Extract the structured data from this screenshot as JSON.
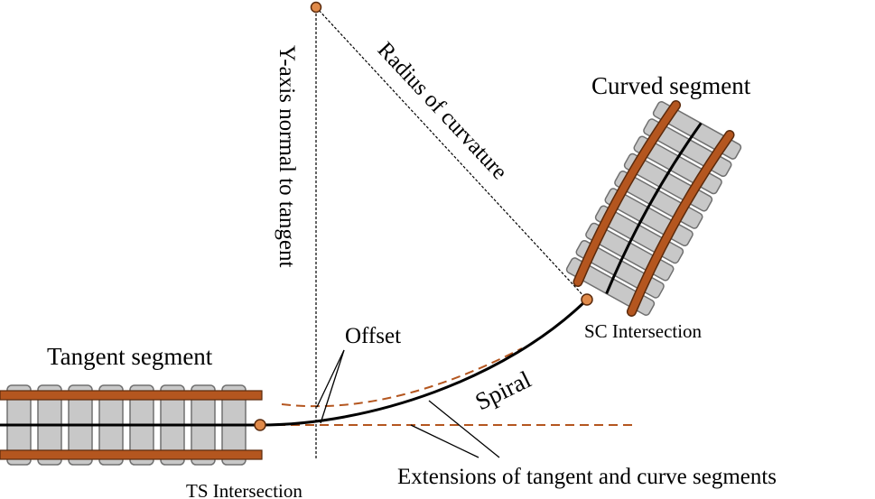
{
  "labels": {
    "curved_segment": "Curved segment",
    "radius": "Radius of curvature",
    "y_axis": "Y-axis normal to tangent",
    "sc_intersection": "SC Intersection",
    "offset": "Offset",
    "tangent_segment": "Tangent segment",
    "spiral": "Spiral",
    "extensions": "Extensions of tangent and curve segments",
    "ts_intersection": "TS Intersection"
  },
  "colors": {
    "rail": "#b4561f",
    "rail_edge": "#5a2a0c",
    "tie": "#c8c8c8",
    "tie_edge": "#707070",
    "track_line": "#000000",
    "extension": "#b4561f",
    "marker": "#e08a4a"
  }
}
